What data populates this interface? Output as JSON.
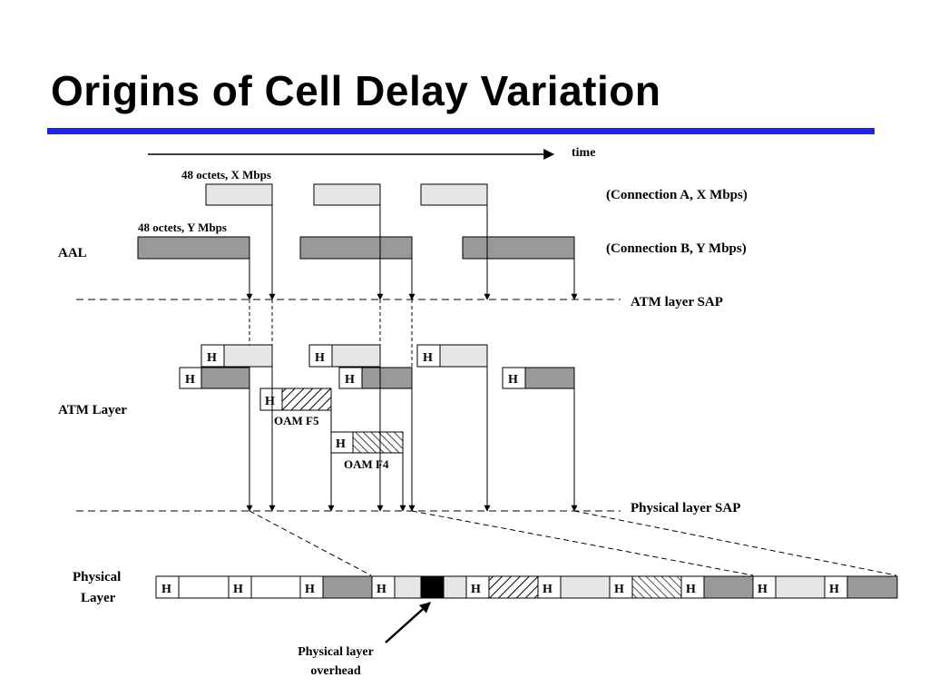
{
  "title": "Origins of Cell Delay Variation",
  "colors": {
    "accent_rule": "#1d24e6",
    "connection_a_fill": "#e6e6e6",
    "connection_b_fill": "#999999",
    "overhead_fill": "#000000",
    "cell_stroke": "#000000"
  },
  "time_label": "time",
  "aal": {
    "label": "AAL",
    "connection_a": {
      "size_label": "48 octets, X Mbps",
      "legend": "(Connection A, X Mbps)"
    },
    "connection_b": {
      "size_label": "48 octets, Y Mbps",
      "legend": "(Connection B, Y Mbps)"
    }
  },
  "atm_layer": {
    "label": "ATM Layer",
    "sap_label": "ATM layer SAP",
    "header_mark": "H",
    "oam_f5_label": "OAM F5",
    "oam_f4_label": "OAM F4"
  },
  "physical_sap_label": "Physical layer SAP",
  "physical_layer": {
    "label_line1": "Physical",
    "label_line2": "Layer",
    "overhead_line1": "Physical layer",
    "overhead_line2": "overhead",
    "slot_header": "H"
  }
}
